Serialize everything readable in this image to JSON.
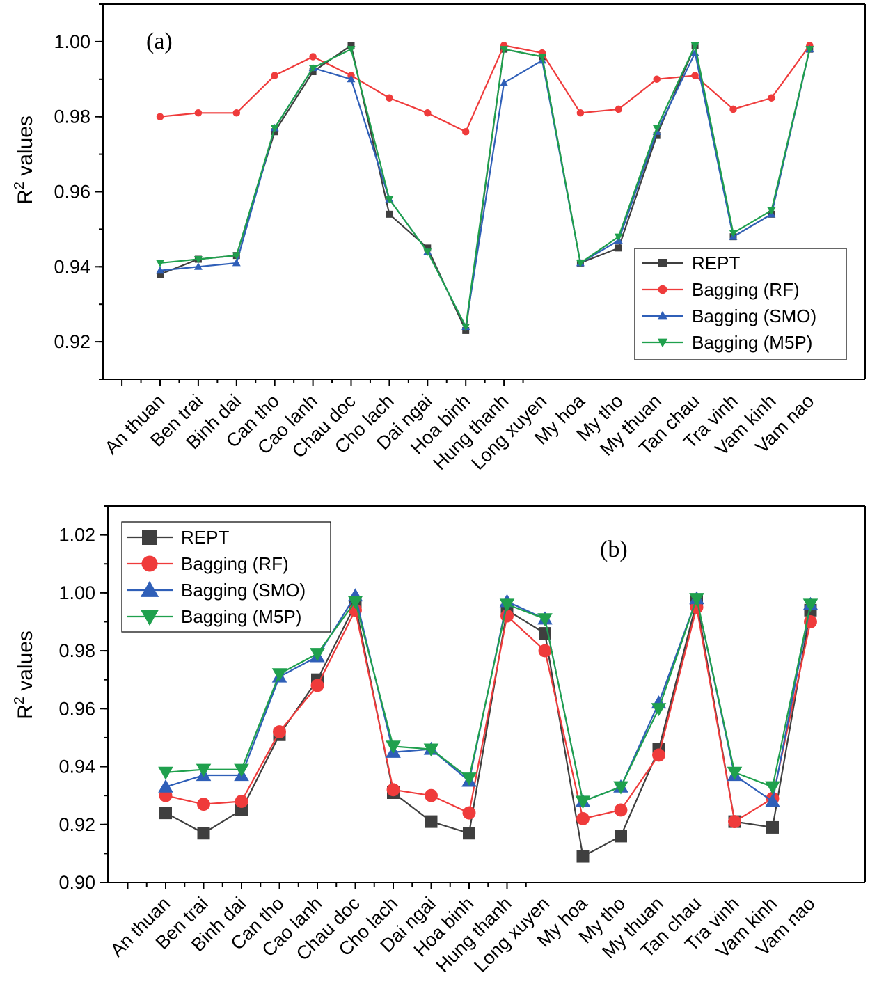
{
  "chart_data": [
    {
      "type": "line",
      "panel_label": "(a)",
      "ylabel": "R",
      "ylabel_sup": "2",
      "ylabel_rest": " values",
      "xlabel": "",
      "ylim": [
        0.91,
        1.01
      ],
      "yticks": [
        0.92,
        0.94,
        0.96,
        0.98,
        1.0
      ],
      "ytick_labels": [
        "0.92",
        "0.94",
        "0.96",
        "0.98",
        "1.00"
      ],
      "legend_position": "bottom-right",
      "categories": [
        "An thuan",
        "Ben trai",
        "Binh dai",
        "Can tho",
        "Cao lanh",
        "Chau doc",
        "Cho lach",
        "Dai ngai",
        "Hoa binh",
        "Hung thanh",
        "Long xuyen",
        "My hoa",
        "My tho",
        "My thuan",
        "Tan chau",
        "Tra vinh",
        "Vam kinh",
        "Vam nao"
      ],
      "series": [
        {
          "name": "REPT",
          "color": "#3f3f3f",
          "marker": "square",
          "values": [
            0.938,
            0.942,
            0.943,
            0.976,
            0.992,
            0.999,
            0.954,
            0.945,
            0.923,
            0.998,
            0.996,
            0.941,
            0.945,
            0.975,
            0.999,
            0.948,
            0.954,
            0.998
          ]
        },
        {
          "name": "Bagging (RF)",
          "color": "#ef3b3b",
          "marker": "circle",
          "values": [
            0.98,
            0.981,
            0.981,
            0.991,
            0.996,
            0.991,
            0.985,
            0.981,
            0.976,
            0.999,
            0.997,
            0.981,
            0.982,
            0.99,
            0.991,
            0.982,
            0.985,
            0.999
          ]
        },
        {
          "name": "Bagging (SMO)",
          "color": "#2f5fb8",
          "marker": "triangle-up",
          "values": [
            0.939,
            0.94,
            0.941,
            0.977,
            0.993,
            0.99,
            0.958,
            0.944,
            0.924,
            0.989,
            0.995,
            0.941,
            0.947,
            0.976,
            0.997,
            0.948,
            0.954,
            0.998
          ]
        },
        {
          "name": "Bagging (M5P)",
          "color": "#1fa04d",
          "marker": "triangle-down",
          "values": [
            0.941,
            0.942,
            0.943,
            0.977,
            0.993,
            0.998,
            0.958,
            0.944,
            0.924,
            0.998,
            0.996,
            0.941,
            0.948,
            0.977,
            0.999,
            0.949,
            0.955,
            0.998
          ]
        }
      ]
    },
    {
      "type": "line",
      "panel_label": "(b)",
      "ylabel": "R",
      "ylabel_sup": "2",
      "ylabel_rest": " values",
      "xlabel": "",
      "ylim": [
        0.9,
        1.03
      ],
      "yticks": [
        0.9,
        0.92,
        0.94,
        0.96,
        0.98,
        1.0,
        1.02
      ],
      "ytick_labels": [
        "0.90",
        "0.92",
        "0.94",
        "0.96",
        "0.98",
        "1.00",
        "1.02"
      ],
      "legend_position": "top-left",
      "categories": [
        "An thuan",
        "Ben trai",
        "Binh dai",
        "Can tho",
        "Cao lanh",
        "Chau doc",
        "Cho lach",
        "Dai ngai",
        "Hoa binh",
        "Hung thanh",
        "Long xuyen",
        "My hoa",
        "My tho",
        "My thuan",
        "Tan chau",
        "Tra vinh",
        "Vam kinh",
        "Vam nao"
      ],
      "series": [
        {
          "name": "REPT",
          "color": "#3f3f3f",
          "marker": "square",
          "values": [
            0.924,
            0.917,
            0.925,
            0.951,
            0.97,
            0.996,
            0.931,
            0.921,
            0.917,
            0.994,
            0.986,
            0.909,
            0.916,
            0.946,
            0.997,
            0.921,
            0.919,
            0.994
          ]
        },
        {
          "name": "Bagging (RF)",
          "color": "#ef3b3b",
          "marker": "circle",
          "values": [
            0.93,
            0.927,
            0.928,
            0.952,
            0.968,
            0.994,
            0.932,
            0.93,
            0.924,
            0.992,
            0.98,
            0.922,
            0.925,
            0.944,
            0.995,
            0.921,
            0.929,
            0.99
          ]
        },
        {
          "name": "Bagging (SMO)",
          "color": "#2f5fb8",
          "marker": "triangle-up",
          "values": [
            0.933,
            0.937,
            0.937,
            0.971,
            0.978,
            0.999,
            0.945,
            0.946,
            0.935,
            0.997,
            0.991,
            0.928,
            0.933,
            0.962,
            0.998,
            0.937,
            0.928,
            0.996
          ]
        },
        {
          "name": "Bagging (M5P)",
          "color": "#1fa04d",
          "marker": "triangle-down",
          "values": [
            0.938,
            0.939,
            0.939,
            0.972,
            0.979,
            0.997,
            0.947,
            0.946,
            0.936,
            0.996,
            0.991,
            0.928,
            0.933,
            0.96,
            0.998,
            0.938,
            0.933,
            0.996
          ]
        }
      ]
    }
  ]
}
